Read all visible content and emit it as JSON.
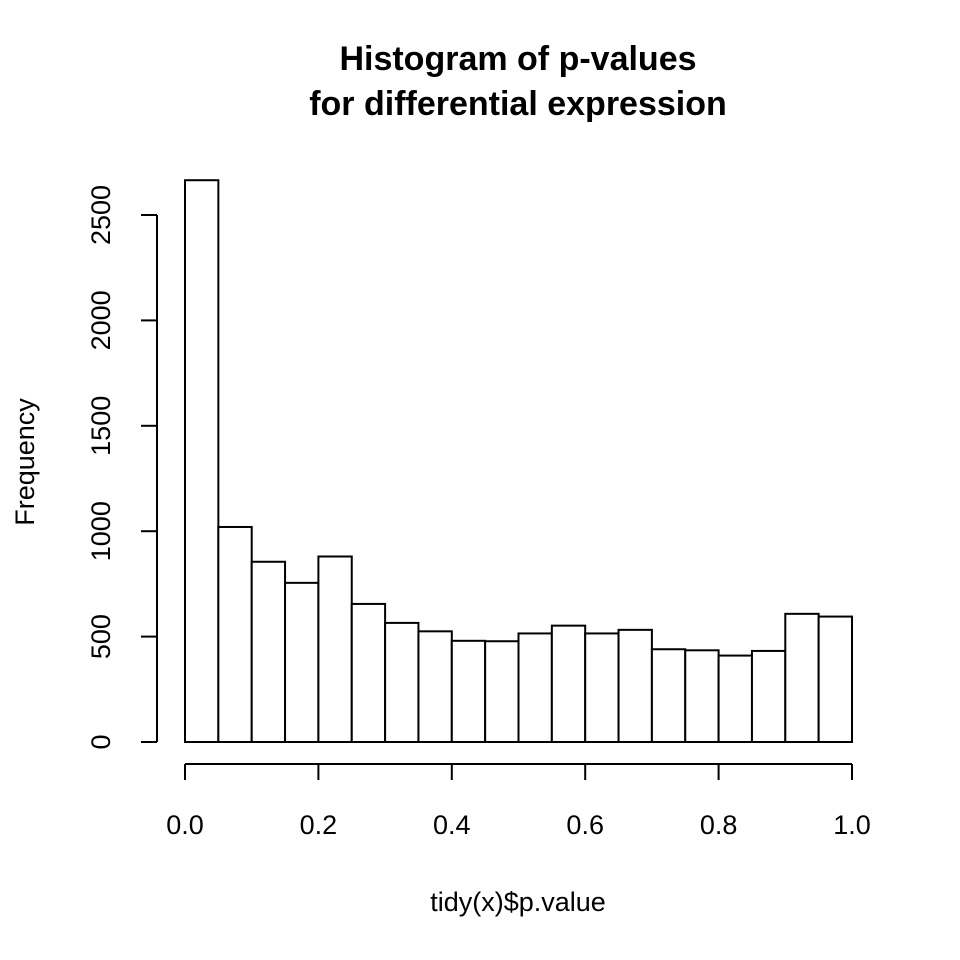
{
  "chart_data": {
    "type": "bar",
    "title_lines": [
      "Histogram of p-values",
      "for differential expression"
    ],
    "xlabel": "tidy(x)$p.value",
    "ylabel": "Frequency",
    "xlim": [
      0,
      1
    ],
    "ylim": [
      0,
      2600
    ],
    "bin_width": 0.05,
    "bins": [
      {
        "start": 0.0,
        "end": 0.05,
        "count": 2665
      },
      {
        "start": 0.05,
        "end": 0.1,
        "count": 1020
      },
      {
        "start": 0.1,
        "end": 0.15,
        "count": 855
      },
      {
        "start": 0.15,
        "end": 0.2,
        "count": 755
      },
      {
        "start": 0.2,
        "end": 0.25,
        "count": 880
      },
      {
        "start": 0.25,
        "end": 0.3,
        "count": 655
      },
      {
        "start": 0.3,
        "end": 0.35,
        "count": 565
      },
      {
        "start": 0.35,
        "end": 0.4,
        "count": 525
      },
      {
        "start": 0.4,
        "end": 0.45,
        "count": 480
      },
      {
        "start": 0.45,
        "end": 0.5,
        "count": 478
      },
      {
        "start": 0.5,
        "end": 0.55,
        "count": 515
      },
      {
        "start": 0.55,
        "end": 0.6,
        "count": 552
      },
      {
        "start": 0.6,
        "end": 0.65,
        "count": 515
      },
      {
        "start": 0.65,
        "end": 0.7,
        "count": 532
      },
      {
        "start": 0.7,
        "end": 0.75,
        "count": 440
      },
      {
        "start": 0.75,
        "end": 0.8,
        "count": 435
      },
      {
        "start": 0.8,
        "end": 0.85,
        "count": 410
      },
      {
        "start": 0.85,
        "end": 0.9,
        "count": 432
      },
      {
        "start": 0.9,
        "end": 0.95,
        "count": 608
      },
      {
        "start": 0.95,
        "end": 1.0,
        "count": 595
      }
    ],
    "x_ticks": [
      {
        "value": 0.0,
        "label": "0.0"
      },
      {
        "value": 0.2,
        "label": "0.2"
      },
      {
        "value": 0.4,
        "label": "0.4"
      },
      {
        "value": 0.6,
        "label": "0.6"
      },
      {
        "value": 0.8,
        "label": "0.8"
      },
      {
        "value": 1.0,
        "label": "1.0"
      }
    ],
    "y_ticks": [
      {
        "value": 0,
        "label": "0"
      },
      {
        "value": 500,
        "label": "500"
      },
      {
        "value": 1000,
        "label": "1000"
      },
      {
        "value": 1500,
        "label": "1500"
      },
      {
        "value": 2000,
        "label": "2000"
      },
      {
        "value": 2500,
        "label": "2500"
      }
    ],
    "grid": false,
    "legend": "none",
    "colors": {
      "bar_fill": "#ffffff",
      "bar_stroke": "#000000"
    }
  }
}
